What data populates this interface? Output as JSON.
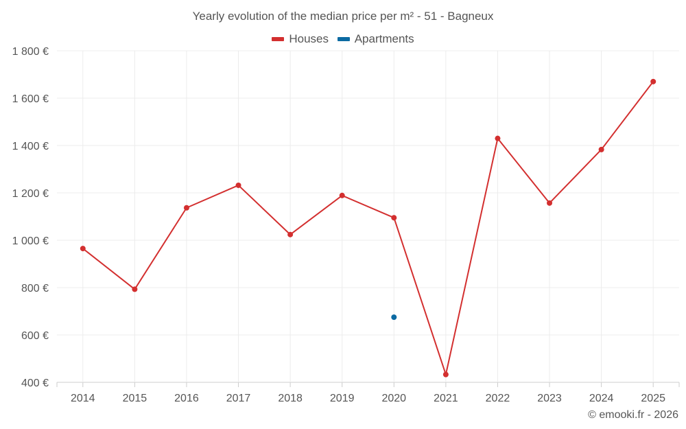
{
  "chart_data": {
    "type": "line",
    "title": "Yearly evolution of the median price per m² - 51 - Bagneux",
    "categories": [
      "2014",
      "2015",
      "2016",
      "2017",
      "2018",
      "2019",
      "2020",
      "2021",
      "2022",
      "2023",
      "2024",
      "2025"
    ],
    "y_ticks": [
      "400 €",
      "600 €",
      "800 €",
      "1 000 €",
      "1 200 €",
      "1 400 €",
      "1 600 €",
      "1 800 €"
    ],
    "ylim": [
      400,
      1800
    ],
    "series": [
      {
        "name": "Houses",
        "color": "#d32f2f",
        "values": [
          965,
          793,
          1137,
          1232,
          1024,
          1189,
          1095,
          433,
          1430,
          1157,
          1383,
          1670
        ]
      },
      {
        "name": "Apartments",
        "color": "#0b6aa2",
        "values": [
          null,
          null,
          null,
          null,
          null,
          null,
          675,
          null,
          null,
          null,
          null,
          null
        ]
      }
    ],
    "grid": true,
    "legend_position": "top-center",
    "xlabel": "",
    "ylabel": ""
  },
  "footer": {
    "copyright": "© emooki.fr - 2026"
  }
}
